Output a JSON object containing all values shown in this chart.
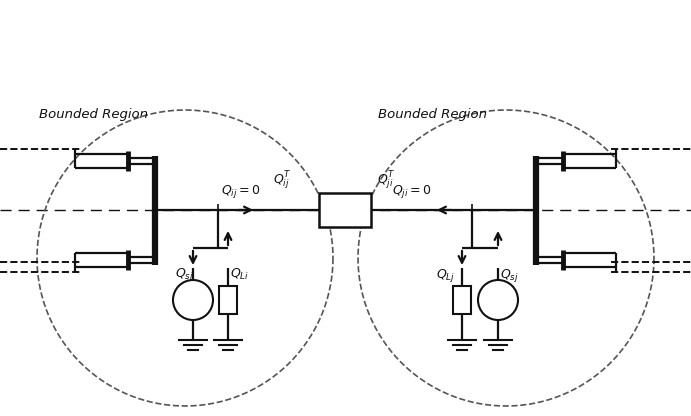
{
  "bg_color": "#ffffff",
  "line_color": "#111111",
  "dash_color": "#555555",
  "text_color": "#111111",
  "fig_width": 6.91,
  "fig_height": 4.16,
  "dpi": 100,
  "bounded_region_left_label": "Bounded Region",
  "bounded_region_right_label": "Bounded Region",
  "labels": {
    "Qij0": "$Q_{ij}=0$",
    "QijT": "$Q_{ij}^{T}$",
    "QjiT": "$Q_{ji}^{T}$",
    "Qji0": "$Q_{ji}=0$",
    "Qsi": "$Q_{si}$",
    "QLi": "$Q_{Li}$",
    "QLj": "$Q_{Lj}$",
    "Qsj": "$Q_{sj}$"
  }
}
